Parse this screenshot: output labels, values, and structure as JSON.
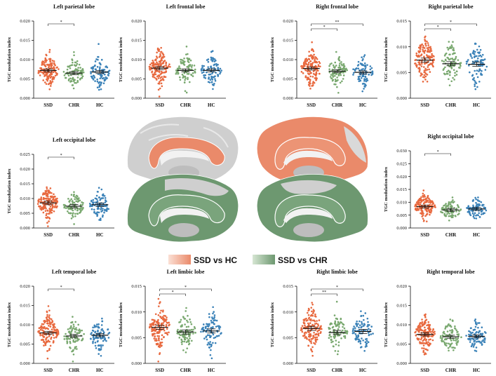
{
  "categories": [
    "SSD",
    "CHR",
    "HC"
  ],
  "ylabel": "TGC modulation index",
  "colors": {
    "SSD": "#e8693f",
    "CHR": "#79a86f",
    "HC": "#3b82b8",
    "brain": "#c9c9c9",
    "ssd_hc": "#ea8a6a",
    "ssd_chr": "#6d9870"
  },
  "legend": {
    "ssd_hc": "SSD vs HC",
    "ssd_chr": "SSD vs CHR"
  },
  "brain_views": [
    {
      "view": "left-medial",
      "contrast": "ssd_hc"
    },
    {
      "view": "right-medial",
      "contrast": "ssd_hc"
    },
    {
      "view": "left-medial",
      "contrast": "ssd_chr"
    },
    {
      "view": "right-medial",
      "contrast": "ssd_chr"
    }
  ],
  "chart_data": [
    {
      "type": "scatter",
      "title": "Left parietal lobe",
      "ylabel": "TGC modulation index",
      "categories": [
        "SSD",
        "CHR",
        "HC"
      ],
      "yticks": [
        "0.000",
        "0.005",
        "0.010",
        "0.015",
        "0.020"
      ],
      "ylim": [
        0,
        0.02
      ],
      "series": [
        {
          "name": "SSD",
          "mean": 0.0072,
          "sem": 0.0002,
          "n": 150
        },
        {
          "name": "CHR",
          "mean": 0.0065,
          "sem": 0.0002,
          "n": 90
        },
        {
          "name": "HC",
          "mean": 0.0068,
          "sem": 0.0002,
          "n": 90
        }
      ],
      "significance": [
        {
          "from": "SSD",
          "to": "CHR",
          "label": "*"
        }
      ]
    },
    {
      "type": "scatter",
      "title": "Left frontal lobe",
      "ylabel": "TGC modulation index",
      "categories": [
        "SSD",
        "CHR",
        "HC"
      ],
      "yticks": [
        "0.000",
        "0.005",
        "0.010",
        "0.015",
        "0.020"
      ],
      "ylim": [
        0,
        0.02
      ],
      "series": [
        {
          "name": "SSD",
          "mean": 0.0078,
          "sem": 0.0002,
          "n": 150
        },
        {
          "name": "CHR",
          "mean": 0.0072,
          "sem": 0.0002,
          "n": 90
        },
        {
          "name": "HC",
          "mean": 0.0072,
          "sem": 0.0002,
          "n": 90
        }
      ],
      "significance": []
    },
    {
      "type": "scatter",
      "title": "Right frontal lobe",
      "ylabel": "TGC modulation index",
      "categories": [
        "SSD",
        "CHR",
        "HC"
      ],
      "yticks": [
        "0.000",
        "0.005",
        "0.010",
        "0.015",
        "0.020"
      ],
      "ylim": [
        0,
        0.02
      ],
      "series": [
        {
          "name": "SSD",
          "mean": 0.0077,
          "sem": 0.0002,
          "n": 150
        },
        {
          "name": "CHR",
          "mean": 0.007,
          "sem": 0.0002,
          "n": 90
        },
        {
          "name": "HC",
          "mean": 0.0067,
          "sem": 0.0002,
          "n": 90
        }
      ],
      "significance": [
        {
          "from": "SSD",
          "to": "CHR",
          "label": "*"
        },
        {
          "from": "SSD",
          "to": "HC",
          "label": "**"
        }
      ]
    },
    {
      "type": "scatter",
      "title": "Right parietal lobe",
      "ylabel": "TGC modulation index",
      "categories": [
        "SSD",
        "CHR",
        "HC"
      ],
      "yticks": [
        "0.000",
        "0.005",
        "0.010",
        "0.015"
      ],
      "ylim": [
        0,
        0.015
      ],
      "series": [
        {
          "name": "SSD",
          "mean": 0.0074,
          "sem": 0.0002,
          "n": 150
        },
        {
          "name": "CHR",
          "mean": 0.0067,
          "sem": 0.0002,
          "n": 90
        },
        {
          "name": "HC",
          "mean": 0.0066,
          "sem": 0.0002,
          "n": 90
        }
      ],
      "significance": [
        {
          "from": "SSD",
          "to": "CHR",
          "label": "*"
        },
        {
          "from": "SSD",
          "to": "HC",
          "label": "*"
        }
      ]
    },
    {
      "type": "scatter",
      "title": "Left occipital lobe",
      "ylabel": "TGC modulation index",
      "categories": [
        "SSD",
        "CHR",
        "HC"
      ],
      "yticks": [
        "0.000",
        "0.005",
        "0.010",
        "0.015",
        "0.020",
        "0.025"
      ],
      "ylim": [
        0,
        0.025
      ],
      "series": [
        {
          "name": "SSD",
          "mean": 0.0085,
          "sem": 0.0003,
          "n": 150
        },
        {
          "name": "CHR",
          "mean": 0.0074,
          "sem": 0.0003,
          "n": 90
        },
        {
          "name": "HC",
          "mean": 0.0079,
          "sem": 0.0003,
          "n": 90
        }
      ],
      "significance": [
        {
          "from": "SSD",
          "to": "CHR",
          "label": "*"
        }
      ]
    },
    {
      "type": "scatter",
      "title": "Right occipital lobe",
      "ylabel": "TGC modulation index",
      "categories": [
        "SSD",
        "CHR",
        "HC"
      ],
      "yticks": [
        "0.000",
        "0.005",
        "0.010",
        "0.015",
        "0.020",
        "0.025",
        "0.030"
      ],
      "ylim": [
        0,
        0.03
      ],
      "series": [
        {
          "name": "SSD",
          "mean": 0.0083,
          "sem": 0.0003,
          "n": 150
        },
        {
          "name": "CHR",
          "mean": 0.007,
          "sem": 0.0003,
          "n": 90
        },
        {
          "name": "HC",
          "mean": 0.0074,
          "sem": 0.0003,
          "n": 90
        }
      ],
      "significance": [
        {
          "from": "SSD",
          "to": "CHR",
          "label": "*"
        }
      ]
    },
    {
      "type": "scatter",
      "title": "Left temporal lobe",
      "ylabel": "TGC modulation index",
      "categories": [
        "SSD",
        "CHR",
        "HC"
      ],
      "yticks": [
        "0.000",
        "0.005",
        "0.010",
        "0.015",
        "0.020"
      ],
      "ylim": [
        0,
        0.02
      ],
      "series": [
        {
          "name": "SSD",
          "mean": 0.0079,
          "sem": 0.0002,
          "n": 150
        },
        {
          "name": "CHR",
          "mean": 0.0071,
          "sem": 0.0002,
          "n": 90
        },
        {
          "name": "HC",
          "mean": 0.0073,
          "sem": 0.0002,
          "n": 90
        }
      ],
      "significance": [
        {
          "from": "SSD",
          "to": "CHR",
          "label": "*"
        }
      ]
    },
    {
      "type": "scatter",
      "title": "Left limbic lobe",
      "ylabel": "TGC modulation index",
      "categories": [
        "SSD",
        "CHR",
        "HC"
      ],
      "yticks": [
        "0.000",
        "0.005",
        "0.010",
        "0.015"
      ],
      "ylim": [
        0,
        0.015
      ],
      "series": [
        {
          "name": "SSD",
          "mean": 0.007,
          "sem": 0.0002,
          "n": 150
        },
        {
          "name": "CHR",
          "mean": 0.0061,
          "sem": 0.0002,
          "n": 90
        },
        {
          "name": "HC",
          "mean": 0.0063,
          "sem": 0.0002,
          "n": 90
        }
      ],
      "significance": [
        {
          "from": "SSD",
          "to": "CHR",
          "label": "*"
        },
        {
          "from": "SSD",
          "to": "HC",
          "label": "*"
        }
      ]
    },
    {
      "type": "scatter",
      "title": "Right limbic lobe",
      "ylabel": "TGC modulation index",
      "categories": [
        "SSD",
        "CHR",
        "HC"
      ],
      "yticks": [
        "0.000",
        "0.005",
        "0.010",
        "0.015"
      ],
      "ylim": [
        0,
        0.015
      ],
      "series": [
        {
          "name": "SSD",
          "mean": 0.0068,
          "sem": 0.0002,
          "n": 150
        },
        {
          "name": "CHR",
          "mean": 0.006,
          "sem": 0.0002,
          "n": 90
        },
        {
          "name": "HC",
          "mean": 0.0062,
          "sem": 0.0002,
          "n": 90
        }
      ],
      "significance": [
        {
          "from": "SSD",
          "to": "CHR",
          "label": "**"
        },
        {
          "from": "SSD",
          "to": "HC",
          "label": "*"
        }
      ]
    },
    {
      "type": "scatter",
      "title": "Right temporal lobe",
      "ylabel": "TGC modulation index",
      "categories": [
        "SSD",
        "CHR",
        "HC"
      ],
      "yticks": [
        "0.000",
        "0.005",
        "0.010",
        "0.015",
        "0.020"
      ],
      "ylim": [
        0,
        0.02
      ],
      "series": [
        {
          "name": "SSD",
          "mean": 0.0075,
          "sem": 0.0002,
          "n": 150
        },
        {
          "name": "CHR",
          "mean": 0.0069,
          "sem": 0.0002,
          "n": 90
        },
        {
          "name": "HC",
          "mean": 0.007,
          "sem": 0.0002,
          "n": 90
        }
      ],
      "significance": []
    }
  ]
}
